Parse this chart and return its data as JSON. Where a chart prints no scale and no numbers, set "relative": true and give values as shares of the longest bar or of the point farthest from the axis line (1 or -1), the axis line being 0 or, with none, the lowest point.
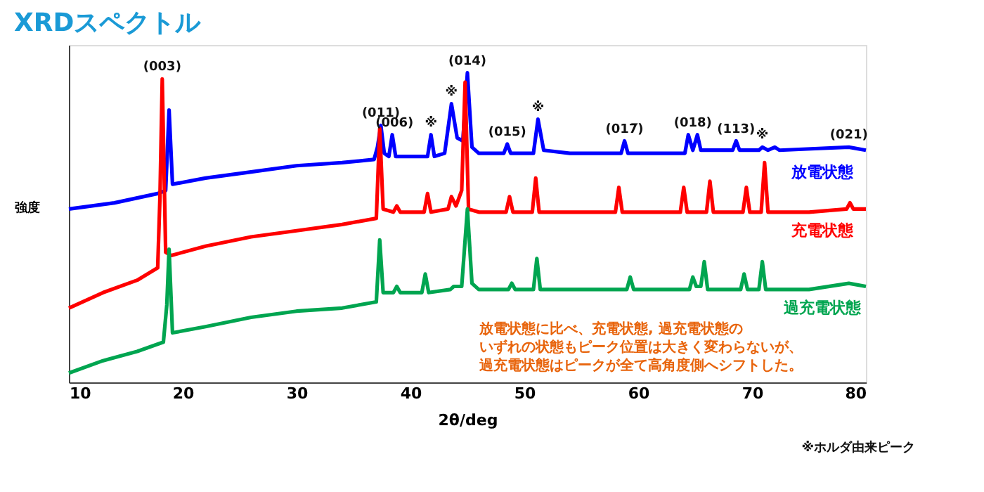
{
  "chart_data": {
    "type": "line",
    "title": "XRDスペクトル",
    "xlabel": "2θ/deg",
    "ylabel": "強度",
    "relative": true,
    "xlim": [
      10,
      80
    ],
    "xticks": [
      10,
      20,
      30,
      40,
      50,
      60,
      70,
      80
    ],
    "grid": false,
    "legend": false,
    "marker": "none",
    "line_style": "solid",
    "series": [
      {
        "name": "放電状態",
        "color": "#0000ff",
        "x": [
          10,
          14,
          17.8,
          18.5,
          18.8,
          19.1,
          22,
          26,
          30,
          34,
          36.8,
          37.1,
          37.4,
          37.7,
          38.1,
          38.4,
          38.7,
          40,
          41.5,
          41.8,
          42.1,
          43,
          43.6,
          44.1,
          44.6,
          45.0,
          45.4,
          46,
          48.2,
          48.5,
          48.8,
          50.8,
          51.2,
          51.7,
          54,
          58.5,
          58.8,
          59.1,
          64.1,
          64.4,
          64.8,
          65.2,
          65.5,
          68.3,
          68.6,
          68.9,
          70.6,
          70.9,
          71.4,
          72.0,
          72.4,
          75.5,
          78.5,
          80
        ],
        "values": [
          0.56,
          0.58,
          0.61,
          0.62,
          0.88,
          0.64,
          0.66,
          0.68,
          0.7,
          0.71,
          0.72,
          0.76,
          0.83,
          0.74,
          0.73,
          0.8,
          0.73,
          0.73,
          0.73,
          0.8,
          0.73,
          0.74,
          0.9,
          0.79,
          0.78,
          1.0,
          0.76,
          0.74,
          0.74,
          0.77,
          0.74,
          0.74,
          0.85,
          0.75,
          0.74,
          0.74,
          0.78,
          0.74,
          0.74,
          0.8,
          0.75,
          0.8,
          0.75,
          0.75,
          0.78,
          0.75,
          0.75,
          0.76,
          0.75,
          0.76,
          0.75,
          0.755,
          0.76,
          0.75
        ]
      },
      {
        "name": "充電状態",
        "color": "#ff0000",
        "x": [
          10,
          13,
          16,
          17.8,
          18.0,
          18.2,
          18.5,
          19,
          22,
          26,
          30,
          34,
          37,
          37.3,
          37.6,
          38.5,
          38.8,
          39.1,
          41.2,
          41.5,
          41.8,
          43.3,
          43.6,
          44.0,
          44.5,
          44.8,
          45.1,
          46,
          48.4,
          48.7,
          49,
          50.7,
          51,
          51.3,
          58,
          58.3,
          58.6,
          63.7,
          64,
          64.3,
          66,
          66.3,
          66.6,
          69.2,
          69.5,
          69.8,
          70.8,
          71.1,
          71.4,
          75,
          78.3,
          78.6,
          78.9,
          80
        ],
        "values": [
          0.24,
          0.29,
          0.33,
          0.37,
          0.6,
          0.98,
          0.42,
          0.41,
          0.44,
          0.47,
          0.49,
          0.51,
          0.53,
          0.82,
          0.56,
          0.55,
          0.57,
          0.55,
          0.55,
          0.61,
          0.55,
          0.56,
          0.6,
          0.57,
          0.62,
          0.97,
          0.56,
          0.55,
          0.55,
          0.6,
          0.55,
          0.55,
          0.66,
          0.55,
          0.55,
          0.63,
          0.55,
          0.55,
          0.63,
          0.55,
          0.55,
          0.65,
          0.55,
          0.55,
          0.63,
          0.55,
          0.55,
          0.71,
          0.55,
          0.55,
          0.56,
          0.58,
          0.56,
          0.56
        ]
      },
      {
        "name": "過充電状態",
        "color": "#00a550",
        "x": [
          10,
          13,
          16,
          18.3,
          18.6,
          18.8,
          19.1,
          22,
          26,
          30,
          34,
          37,
          37.3,
          37.6,
          38.5,
          38.8,
          39.1,
          41.0,
          41.3,
          41.6,
          43.5,
          43.8,
          44.5,
          45.0,
          45.4,
          46,
          48.6,
          48.9,
          49.2,
          50.8,
          51.1,
          51.4,
          59.0,
          59.3,
          59.6,
          64.5,
          64.8,
          65.1,
          65.5,
          65.8,
          66.1,
          69.0,
          69.3,
          69.6,
          70.6,
          70.9,
          71.2,
          75,
          78.5,
          80
        ],
        "values": [
          0.03,
          0.07,
          0.1,
          0.13,
          0.25,
          0.43,
          0.16,
          0.18,
          0.21,
          0.23,
          0.24,
          0.26,
          0.46,
          0.29,
          0.29,
          0.31,
          0.29,
          0.29,
          0.35,
          0.29,
          0.3,
          0.31,
          0.31,
          0.56,
          0.32,
          0.3,
          0.3,
          0.32,
          0.3,
          0.3,
          0.4,
          0.3,
          0.3,
          0.34,
          0.3,
          0.3,
          0.34,
          0.31,
          0.31,
          0.39,
          0.3,
          0.3,
          0.35,
          0.3,
          0.3,
          0.39,
          0.3,
          0.3,
          0.32,
          0.31
        ]
      }
    ],
    "annotations": [
      {
        "text": "(003)",
        "x": 18.2,
        "y": 0.98
      },
      {
        "text": "(011)",
        "x": 37.4,
        "y": 0.83
      },
      {
        "text": "(006)",
        "x": 38.6,
        "y": 0.8
      },
      {
        "text": "※",
        "x": 41.8,
        "y": 0.8
      },
      {
        "text": "※",
        "x": 43.6,
        "y": 0.9
      },
      {
        "text": "(014)",
        "x": 45.0,
        "y": 1.0
      },
      {
        "text": "(015)",
        "x": 48.5,
        "y": 0.77
      },
      {
        "text": "※",
        "x": 51.2,
        "y": 0.85
      },
      {
        "text": "(017̅)",
        "x": 58.8,
        "y": 0.78
      },
      {
        "text": "(018)",
        "x": 64.8,
        "y": 0.8
      },
      {
        "text": "(113)",
        "x": 68.6,
        "y": 0.78
      },
      {
        "text": "※",
        "x": 70.9,
        "y": 0.76
      },
      {
        "text": "(021)",
        "x": 78.5,
        "y": 0.76
      },
      "放電状態に比べ、充電状態, 過充電状態の",
      "いずれの状態もピーク位置は大きく変わらないが、",
      "過充電状態はピークが全て高角度側へシフトした。",
      "※ホルダ由来ピーク"
    ]
  }
}
